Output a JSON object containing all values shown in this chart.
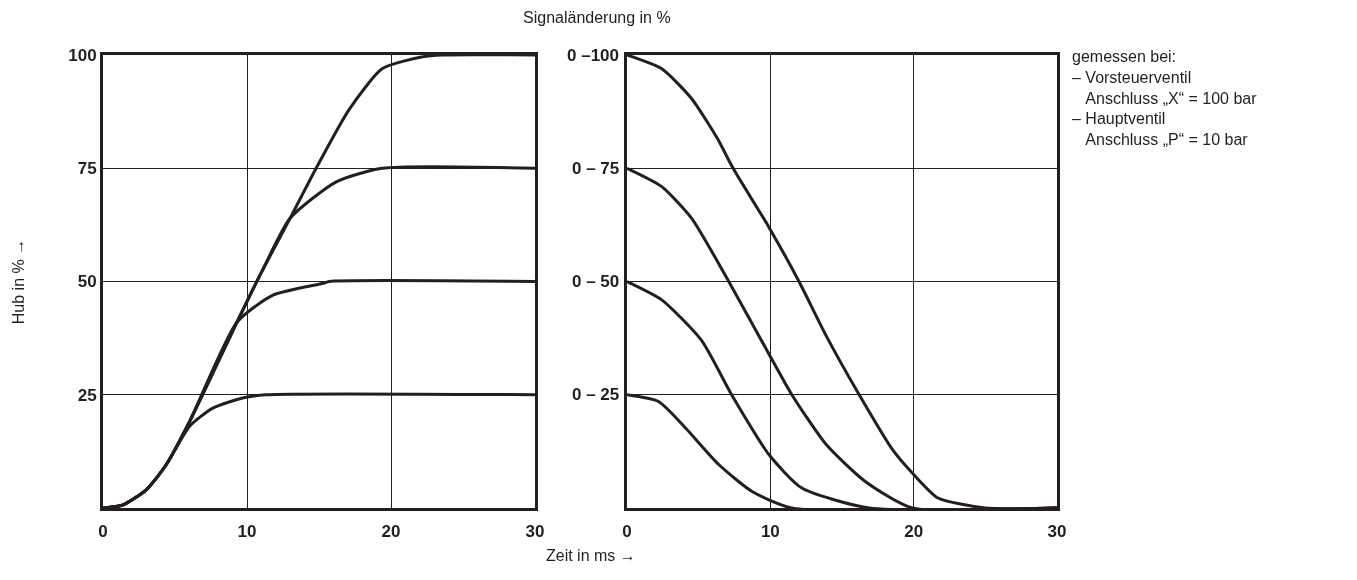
{
  "chart_data": [
    {
      "type": "line",
      "xlabel": "Zeit in ms →",
      "ylabel": "Hub in % →",
      "xlim": [
        0,
        30
      ],
      "xticks": [
        0,
        10,
        20,
        30
      ],
      "ylim": [
        0,
        100
      ],
      "yticks": [
        25,
        50,
        75,
        100
      ],
      "grid": true,
      "series": [
        {
          "color": "#231f20",
          "x": [
            0,
            1.4,
            3,
            4.4,
            6,
            7.6,
            9.7,
            11.3,
            30
          ],
          "values": [
            0,
            0.7,
            4,
            9.6,
            18,
            22,
            24.3,
            25,
            25
          ]
        },
        {
          "color": "#231f20",
          "x": [
            0,
            1.4,
            3,
            4.4,
            6,
            9.3,
            11.8,
            15.3,
            15.7,
            30
          ],
          "values": [
            0,
            0.7,
            4,
            9.6,
            19,
            41,
            47,
            49.6,
            50,
            50
          ]
        },
        {
          "color": "#231f20",
          "x": [
            0,
            1.4,
            3,
            4.4,
            6,
            9.3,
            11,
            13,
            16.2,
            19.4,
            30
          ],
          "values": [
            0,
            0.7,
            4,
            9.6,
            19,
            41,
            52,
            64,
            72,
            75,
            75
          ]
        },
        {
          "color": "#231f20",
          "x": [
            0,
            1.4,
            3,
            4.4,
            6,
            9.3,
            11,
            13,
            14.8,
            17.1,
            19.4,
            22.2,
            23.6,
            30
          ],
          "values": [
            0,
            0.7,
            4,
            9.6,
            19,
            41,
            52,
            64,
            75,
            88,
            97,
            99.6,
            100,
            100
          ]
        }
      ]
    },
    {
      "type": "line",
      "ylabel": "Signaländerung in %",
      "xlim": [
        0,
        30
      ],
      "xticks": [
        0,
        10,
        20,
        30
      ],
      "ylim": [
        0,
        100
      ],
      "yticks": [
        {
          "value": 25,
          "label": null
        },
        {
          "value": 50,
          "label": null
        },
        {
          "value": 75,
          "label": null
        },
        {
          "value": 100,
          "label": null
        }
      ],
      "grid": true,
      "tick_labels": "x",
      "annotations": [
        "0 – 25",
        "0 – 50",
        "0 – 75",
        "0 –100",
        "gemessen bei:",
        "– Vorsteuerventil",
        "   Anschluss „X“ = 100 bar",
        "– Hauptventil",
        "   Anschluss „P“ = 10 bar"
      ],
      "series": [
        {
          "color": "#231f20",
          "x": [
            0,
            2.2,
            4.1,
            6.4,
            8.7,
            11.5,
            30
          ],
          "values": [
            25,
            23.5,
            17.6,
            9.6,
            3.7,
            0,
            0
          ]
        },
        {
          "color": "#231f20",
          "x": [
            0,
            2.4,
            5.2,
            7.3,
            9.9,
            12.2,
            16.9,
            30
          ],
          "values": [
            50,
            46,
            37,
            25,
            11.8,
            4.4,
            0,
            0
          ]
        },
        {
          "color": "#231f20",
          "x": [
            0,
            2.4,
            4.5,
            7.1,
            9.9,
            11.5,
            13.9,
            16.6,
            19.9,
            30
          ],
          "values": [
            75,
            71,
            64,
            50,
            34,
            25,
            14,
            5.9,
            0,
            0
          ]
        },
        {
          "color": "#231f20",
          "x": [
            0,
            2.4,
            4.5,
            6.3,
            7.4,
            9.9,
            12,
            13.9,
            16.2,
            18.5,
            20,
            21.7,
            25,
            30
          ],
          "values": [
            100,
            97,
            90.4,
            81.6,
            75,
            62,
            50,
            38,
            25,
            13,
            7.4,
            2.2,
            0,
            0
          ]
        }
      ]
    }
  ]
}
